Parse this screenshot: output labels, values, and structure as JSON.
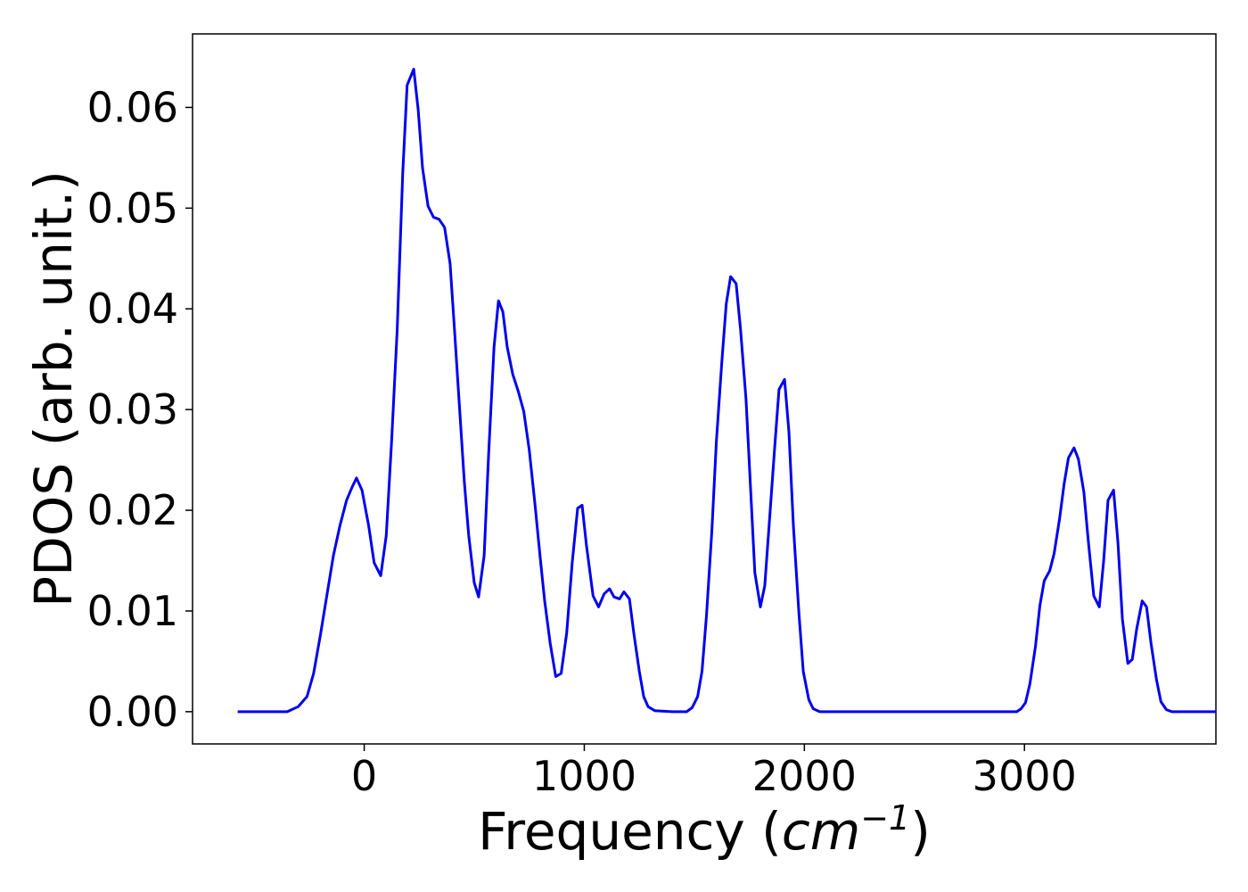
{
  "chart_data": {
    "type": "line",
    "title": "",
    "xlabel_prefix": "Frequency (",
    "xlabel_unit": "cm",
    "xlabel_exp": "−1",
    "xlabel_suffix": ")",
    "ylabel": "PDOS (arb. unit.)",
    "xlim": [
      -780,
      3870
    ],
    "ylim": [
      -0.0032,
      0.0673
    ],
    "x_ticks": [
      0,
      1000,
      2000,
      3000
    ],
    "x_tick_labels": [
      "0",
      "1000",
      "2000",
      "3000"
    ],
    "y_ticks": [
      0.0,
      0.01,
      0.02,
      0.03,
      0.04,
      0.05,
      0.06
    ],
    "y_tick_labels": [
      "0.00",
      "0.01",
      "0.02",
      "0.03",
      "0.04",
      "0.05",
      "0.06"
    ],
    "grid": false,
    "legend": "none",
    "series": [
      {
        "color": "#0000ee",
        "points": [
          [
            -575,
            0
          ],
          [
            -350,
            0
          ],
          [
            -300,
            0.0005
          ],
          [
            -260,
            0.0015
          ],
          [
            -230,
            0.0038
          ],
          [
            -200,
            0.0075
          ],
          [
            -170,
            0.0115
          ],
          [
            -140,
            0.0155
          ],
          [
            -110,
            0.0185
          ],
          [
            -80,
            0.021
          ],
          [
            -55,
            0.0223
          ],
          [
            -35,
            0.0232
          ],
          [
            -10,
            0.022
          ],
          [
            20,
            0.0185
          ],
          [
            45,
            0.0148
          ],
          [
            75,
            0.0135
          ],
          [
            100,
            0.0175
          ],
          [
            125,
            0.027
          ],
          [
            150,
            0.038
          ],
          [
            175,
            0.0535
          ],
          [
            195,
            0.0622
          ],
          [
            225,
            0.0638
          ],
          [
            245,
            0.0598
          ],
          [
            265,
            0.054
          ],
          [
            290,
            0.0502
          ],
          [
            315,
            0.0491
          ],
          [
            340,
            0.0489
          ],
          [
            365,
            0.0481
          ],
          [
            390,
            0.0445
          ],
          [
            410,
            0.038
          ],
          [
            435,
            0.0295
          ],
          [
            455,
            0.0228
          ],
          [
            475,
            0.0175
          ],
          [
            500,
            0.0128
          ],
          [
            520,
            0.0114
          ],
          [
            545,
            0.0155
          ],
          [
            565,
            0.0255
          ],
          [
            590,
            0.0362
          ],
          [
            610,
            0.0408
          ],
          [
            630,
            0.0397
          ],
          [
            650,
            0.0362
          ],
          [
            675,
            0.0335
          ],
          [
            700,
            0.0318
          ],
          [
            725,
            0.0298
          ],
          [
            750,
            0.026
          ],
          [
            775,
            0.0208
          ],
          [
            800,
            0.0152
          ],
          [
            820,
            0.011
          ],
          [
            845,
            0.0068
          ],
          [
            870,
            0.0035
          ],
          [
            895,
            0.0038
          ],
          [
            920,
            0.0078
          ],
          [
            945,
            0.0148
          ],
          [
            970,
            0.0202
          ],
          [
            990,
            0.0205
          ],
          [
            1010,
            0.0165
          ],
          [
            1040,
            0.0115
          ],
          [
            1065,
            0.0104
          ],
          [
            1090,
            0.0117
          ],
          [
            1115,
            0.0122
          ],
          [
            1135,
            0.0114
          ],
          [
            1160,
            0.0112
          ],
          [
            1180,
            0.0119
          ],
          [
            1205,
            0.0112
          ],
          [
            1225,
            0.0078
          ],
          [
            1250,
            0.004
          ],
          [
            1270,
            0.0015
          ],
          [
            1290,
            0.0005
          ],
          [
            1320,
            0.0001
          ],
          [
            1400,
            0
          ],
          [
            1465,
            0
          ],
          [
            1490,
            0.0004
          ],
          [
            1515,
            0.0015
          ],
          [
            1535,
            0.004
          ],
          [
            1555,
            0.0095
          ],
          [
            1580,
            0.018
          ],
          [
            1600,
            0.0268
          ],
          [
            1625,
            0.0348
          ],
          [
            1645,
            0.0405
          ],
          [
            1665,
            0.0432
          ],
          [
            1690,
            0.0425
          ],
          [
            1710,
            0.038
          ],
          [
            1735,
            0.031
          ],
          [
            1755,
            0.0225
          ],
          [
            1775,
            0.0138
          ],
          [
            1800,
            0.0104
          ],
          [
            1820,
            0.0125
          ],
          [
            1840,
            0.0185
          ],
          [
            1865,
            0.0262
          ],
          [
            1885,
            0.032
          ],
          [
            1910,
            0.033
          ],
          [
            1930,
            0.0278
          ],
          [
            1950,
            0.0185
          ],
          [
            1975,
            0.0098
          ],
          [
            1995,
            0.004
          ],
          [
            2020,
            0.0012
          ],
          [
            2040,
            0.0003
          ],
          [
            2070,
            0
          ],
          [
            2900,
            0
          ],
          [
            2965,
            0
          ],
          [
            2985,
            0.0003
          ],
          [
            3005,
            0.0009
          ],
          [
            3025,
            0.0028
          ],
          [
            3050,
            0.0065
          ],
          [
            3070,
            0.0105
          ],
          [
            3090,
            0.013
          ],
          [
            3115,
            0.014
          ],
          [
            3135,
            0.0157
          ],
          [
            3160,
            0.0192
          ],
          [
            3180,
            0.0226
          ],
          [
            3200,
            0.0252
          ],
          [
            3225,
            0.0262
          ],
          [
            3245,
            0.0251
          ],
          [
            3270,
            0.0218
          ],
          [
            3290,
            0.017
          ],
          [
            3315,
            0.0115
          ],
          [
            3340,
            0.0104
          ],
          [
            3360,
            0.015
          ],
          [
            3380,
            0.021
          ],
          [
            3405,
            0.022
          ],
          [
            3425,
            0.0168
          ],
          [
            3445,
            0.0092
          ],
          [
            3470,
            0.0048
          ],
          [
            3490,
            0.0052
          ],
          [
            3510,
            0.0082
          ],
          [
            3535,
            0.011
          ],
          [
            3555,
            0.0104
          ],
          [
            3575,
            0.0068
          ],
          [
            3600,
            0.0032
          ],
          [
            3620,
            0.001
          ],
          [
            3645,
            0.0002
          ],
          [
            3670,
            0
          ],
          [
            3870,
            0
          ]
        ]
      }
    ]
  }
}
